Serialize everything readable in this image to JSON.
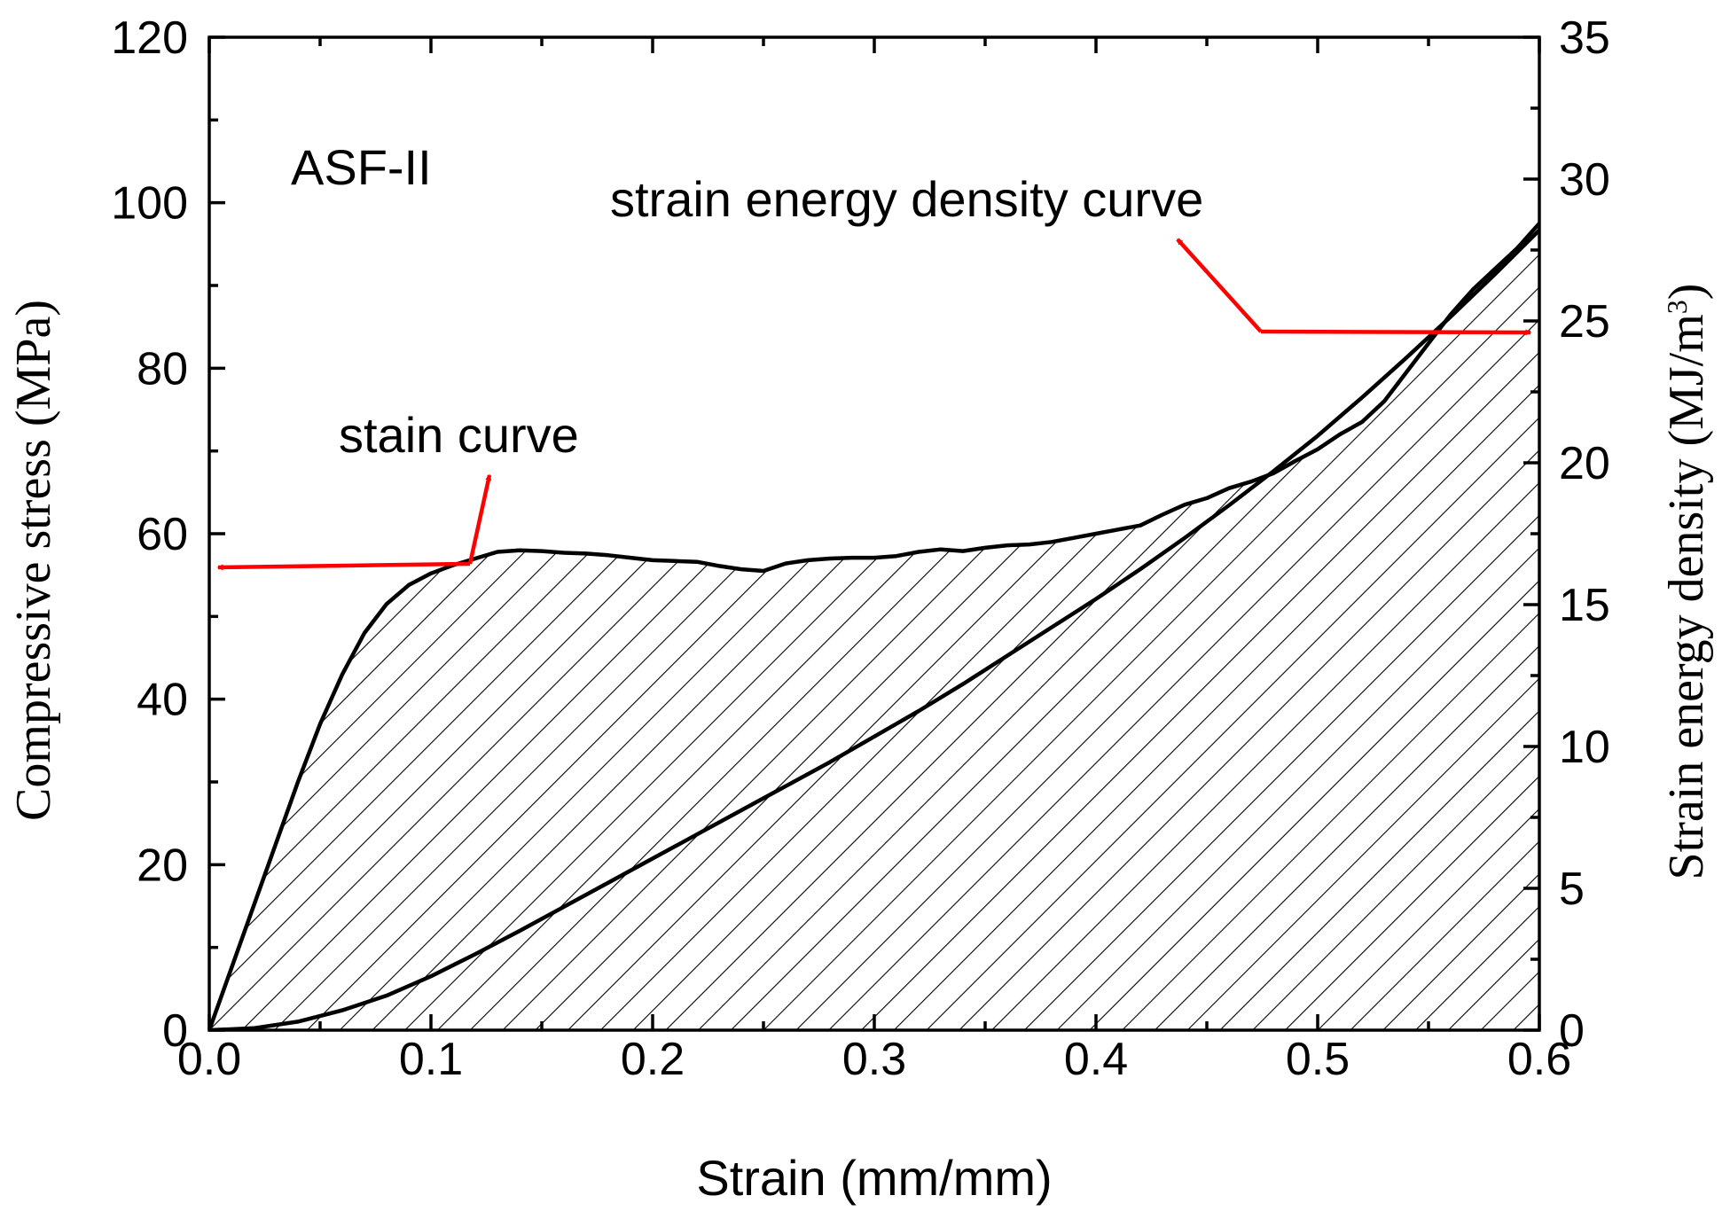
{
  "chart_data": {
    "type": "line",
    "sample_label": "ASF-II",
    "xlabel": "Strain (mm/mm)",
    "ylabel_left": "Compressive stress (MPa)",
    "ylabel_right_main": "Strain energy density (MJ/m",
    "ylabel_right_sup": "3",
    "ylabel_right_close": ")",
    "xlim": [
      0,
      0.6
    ],
    "ylim_left": [
      0,
      120
    ],
    "ylim_right": [
      0,
      35
    ],
    "x_ticks": [
      0.0,
      0.1,
      0.2,
      0.3,
      0.4,
      0.5,
      0.6
    ],
    "x_tick_labels": [
      "0.0",
      "0.1",
      "0.2",
      "0.3",
      "0.4",
      "0.5",
      "0.6"
    ],
    "y_left_ticks": [
      0,
      20,
      40,
      60,
      80,
      100,
      120
    ],
    "y_left_tick_labels": [
      "0",
      "20",
      "40",
      "60",
      "80",
      "100",
      "120"
    ],
    "y_right_ticks": [
      0,
      5,
      10,
      15,
      20,
      25,
      30,
      35
    ],
    "y_right_tick_labels": [
      "0",
      "5",
      "10",
      "15",
      "20",
      "25",
      "30",
      "35"
    ],
    "grid": false,
    "annotations": {
      "stain_curve_label": "stain curve",
      "energy_curve_label": "strain energy density curve",
      "arrow_color": "#ff0000"
    },
    "series": [
      {
        "name": "stain curve",
        "axis": "left",
        "fill": "hatched",
        "x": [
          0.0,
          0.01,
          0.02,
          0.03,
          0.04,
          0.05,
          0.06,
          0.07,
          0.08,
          0.09,
          0.1,
          0.11,
          0.12,
          0.13,
          0.14,
          0.15,
          0.16,
          0.17,
          0.18,
          0.19,
          0.2,
          0.21,
          0.22,
          0.23,
          0.24,
          0.25,
          0.26,
          0.27,
          0.28,
          0.29,
          0.3,
          0.31,
          0.32,
          0.33,
          0.34,
          0.35,
          0.36,
          0.37,
          0.38,
          0.39,
          0.4,
          0.41,
          0.42,
          0.43,
          0.44,
          0.45,
          0.46,
          0.47,
          0.48,
          0.49,
          0.5,
          0.51,
          0.52,
          0.53,
          0.54,
          0.55,
          0.56,
          0.57,
          0.58,
          0.59,
          0.6
        ],
        "values": [
          0,
          7.5,
          15,
          22.5,
          30,
          37,
          43,
          48,
          51.5,
          53.8,
          55.2,
          56.2,
          57,
          57.8,
          58,
          57.9,
          57.7,
          57.6,
          57.4,
          57.1,
          56.8,
          56.7,
          56.6,
          56.1,
          55.7,
          55.5,
          56.4,
          56.8,
          57,
          57.1,
          57.1,
          57.3,
          57.8,
          58.1,
          57.9,
          58.3,
          58.6,
          58.7,
          59,
          59.5,
          60,
          60.5,
          61,
          62.3,
          63.5,
          64.3,
          65.5,
          66.3,
          67.3,
          68.8,
          70.2,
          72,
          73.5,
          76,
          79.5,
          83,
          86.5,
          89.5,
          92,
          94.5,
          97.5
        ]
      },
      {
        "name": "strain energy density curve",
        "axis": "right",
        "x": [
          0.0,
          0.02,
          0.04,
          0.06,
          0.08,
          0.1,
          0.12,
          0.14,
          0.16,
          0.18,
          0.2,
          0.22,
          0.24,
          0.26,
          0.28,
          0.3,
          0.32,
          0.34,
          0.36,
          0.38,
          0.4,
          0.42,
          0.44,
          0.46,
          0.48,
          0.5,
          0.52,
          0.54,
          0.56,
          0.58,
          0.6
        ],
        "values": [
          0,
          0.07,
          0.3,
          0.7,
          1.22,
          1.9,
          2.68,
          3.5,
          4.35,
          5.2,
          6.05,
          6.9,
          7.75,
          8.6,
          9.45,
          10.35,
          11.25,
          12.2,
          13.2,
          14.2,
          15.2,
          16.25,
          17.35,
          18.5,
          19.7,
          20.95,
          22.3,
          23.7,
          25.15,
          26.65,
          28.2
        ]
      }
    ]
  }
}
